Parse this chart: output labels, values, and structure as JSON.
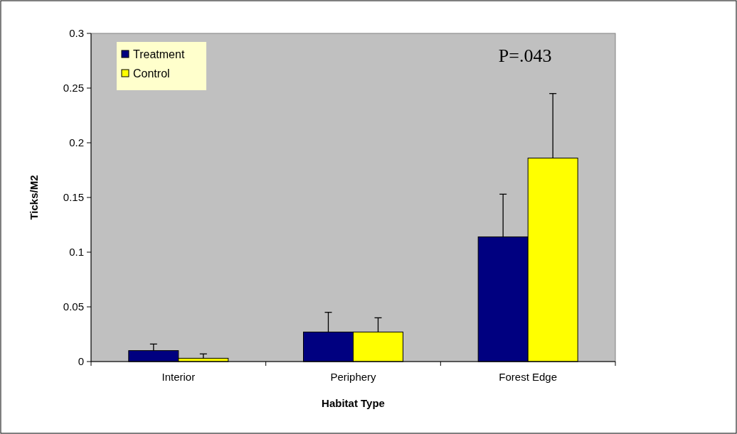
{
  "chart_data": {
    "type": "bar",
    "xlabel": "Habitat Type",
    "ylabel": "Ticks/M2",
    "categories": [
      "Interior",
      "Periphery",
      "Forest Edge"
    ],
    "series": [
      {
        "name": "Treatment",
        "color": "#000080",
        "values": [
          0.01,
          0.027,
          0.114
        ],
        "errors": [
          0.006,
          0.018,
          0.039
        ]
      },
      {
        "name": "Control",
        "color": "#ffff00",
        "values": [
          0.003,
          0.027,
          0.186
        ],
        "errors": [
          0.004,
          0.013,
          0.059
        ]
      }
    ],
    "ylim": [
      0,
      0.3
    ],
    "yticks": [
      0,
      0.05,
      0.1,
      0.15,
      0.2,
      0.25,
      0.3
    ],
    "grid": false,
    "legend": "top left",
    "annotations": [
      "P=.043"
    ]
  }
}
